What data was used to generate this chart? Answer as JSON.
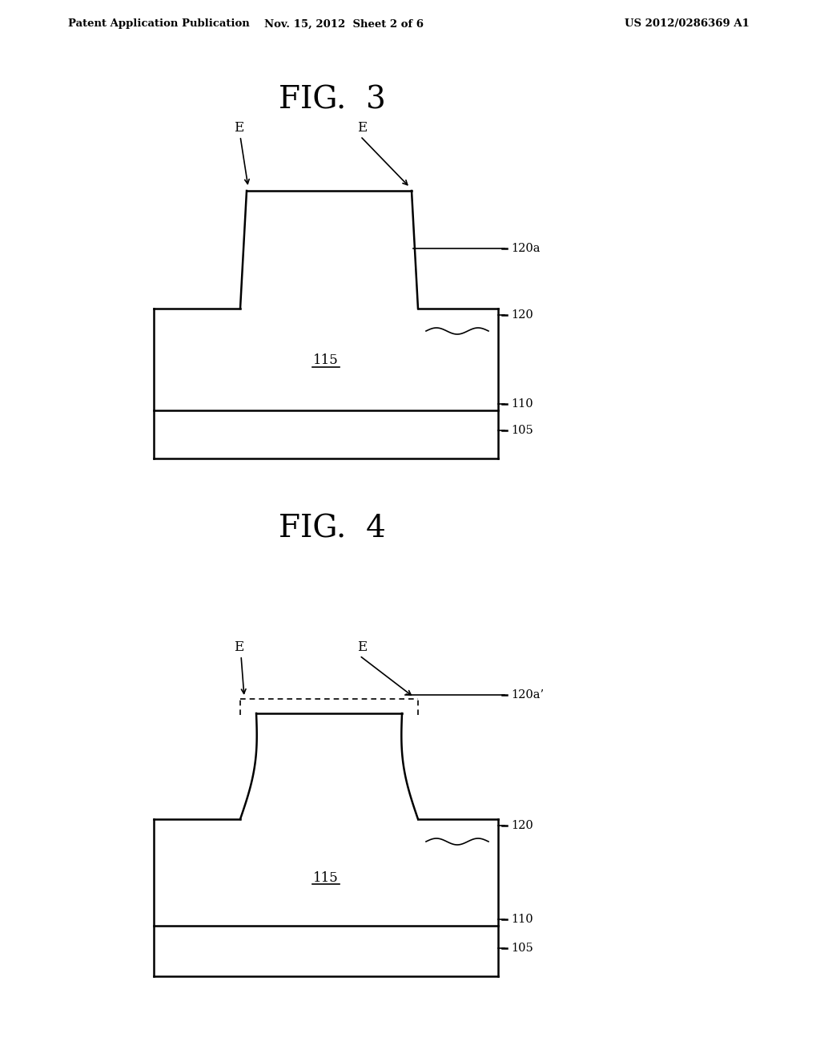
{
  "background_color": "#ffffff",
  "header_left": "Patent Application Publication",
  "header_mid": "Nov. 15, 2012  Sheet 2 of 6",
  "header_right": "US 2012/0286369 A1",
  "fig3_title": "FIG.  3",
  "fig4_title": "FIG.  4",
  "line_color": "#000000",
  "lw_thick": 1.8,
  "lw_thin": 1.2,
  "label_fontsize": 10.5,
  "title_fontsize": 28,
  "header_fontsize": 9.5,
  "e_fontsize": 12
}
